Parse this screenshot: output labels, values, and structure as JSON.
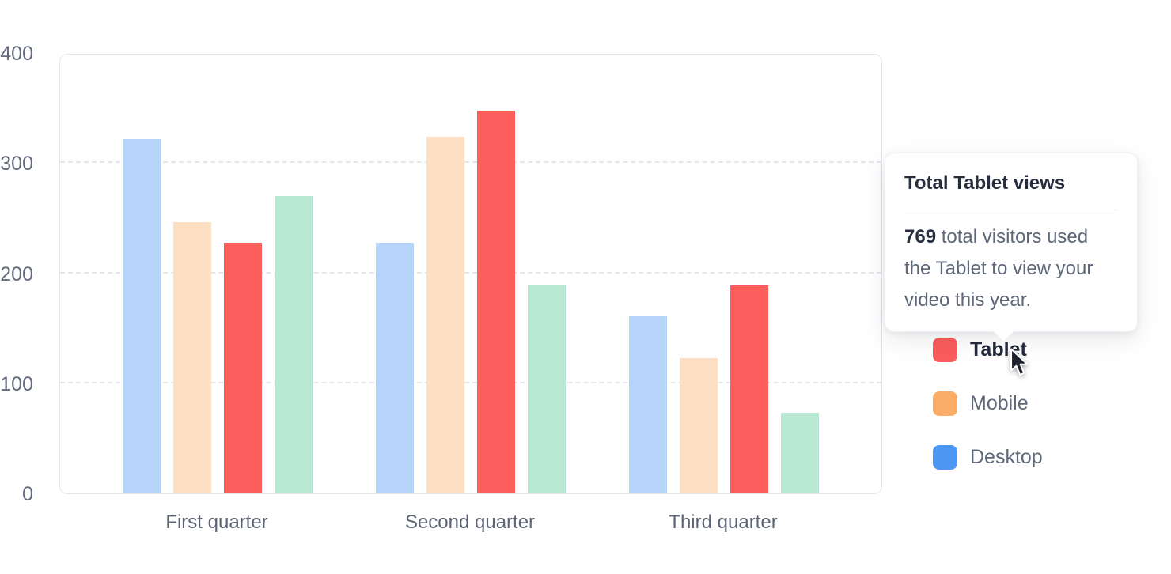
{
  "chart_data": {
    "type": "bar",
    "title": "",
    "categories": [
      "First quarter",
      "Second quarter",
      "Third quarter"
    ],
    "series": [
      {
        "name": "Desktop",
        "color": "#b6d4fa",
        "values": [
          324,
          229,
          162
        ]
      },
      {
        "name": "Mobile",
        "color": "#fde0c4",
        "values": [
          248,
          326,
          124
        ]
      },
      {
        "name": "Tablet",
        "color": "#fc5d5d",
        "values": [
          229,
          350,
          190
        ]
      },
      {
        "name": "",
        "color": "#b8e8d2",
        "values": [
          272,
          191,
          74
        ]
      }
    ],
    "ylabel": "",
    "xlabel": "",
    "ylim": [
      0,
      400
    ],
    "yticks": [
      0,
      100,
      200,
      300,
      400
    ],
    "grid": "horizontal-dashed",
    "legend_position": "right",
    "highlighted_series": "Tablet"
  },
  "tooltip": {
    "title": "Total Tablet views",
    "value": "769",
    "text": " total visitors used the Tablet to view your video this year."
  },
  "legend": {
    "items": [
      {
        "label": "Tablet",
        "color": "#fb5c5c",
        "active": true
      },
      {
        "label": "Mobile",
        "color": "#f9ad66",
        "active": false
      },
      {
        "label": "Desktop",
        "color": "#4d97f2",
        "active": false
      }
    ]
  },
  "colors": {
    "grid": "#e6e7ec",
    "plot_border": "#e6e7ed",
    "axis_text": "#636b7d",
    "tooltip_title_text": "#272e3f",
    "tooltip_body_text": "#5f6879"
  }
}
